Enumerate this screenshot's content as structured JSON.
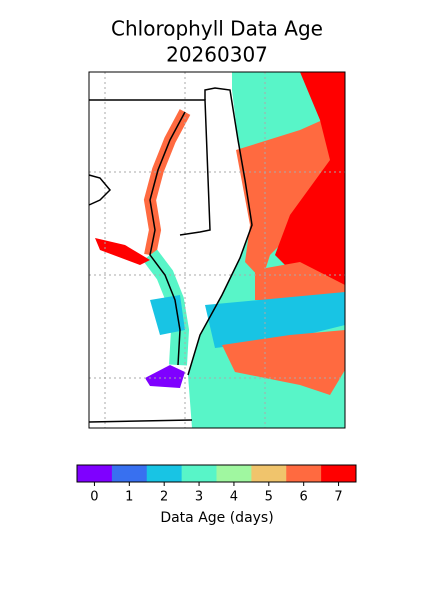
{
  "title": "Chlorophyll Data Age",
  "date": "20260307",
  "colorbar": {
    "label": "Data Age (days)",
    "ticks": [
      0,
      1,
      2,
      3,
      4,
      5,
      6,
      7
    ],
    "colors": [
      "#7f00ff",
      "#3870f0",
      "#18c4e4",
      "#58f5c8",
      "#a0f7a0",
      "#f0c46c",
      "#ff6a40",
      "#ff0000"
    ]
  }
}
